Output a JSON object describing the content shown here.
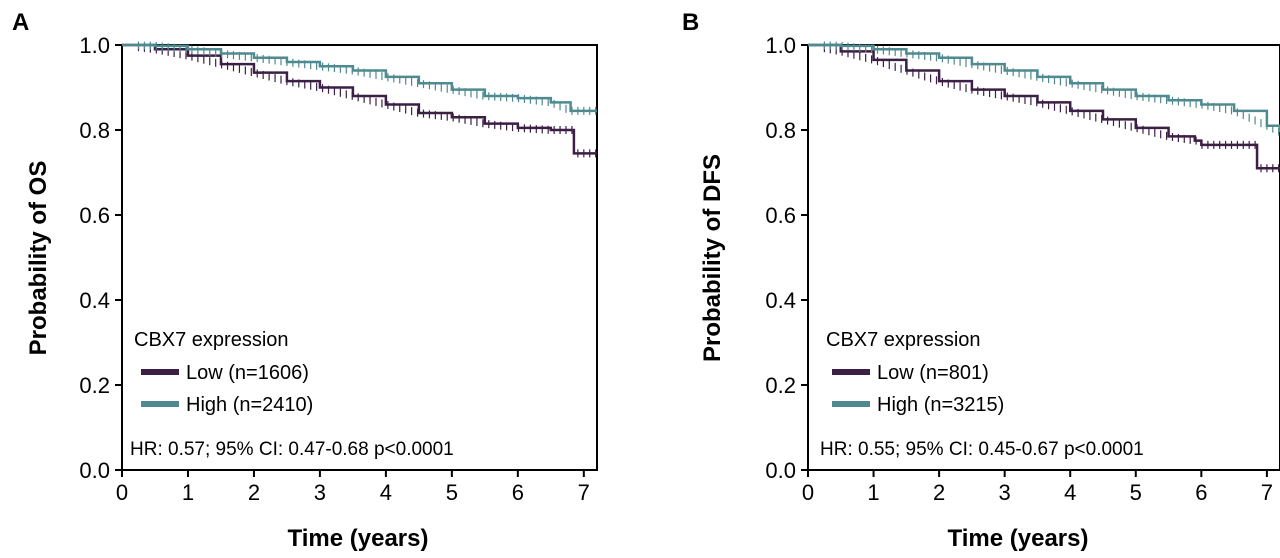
{
  "chart_data": [
    {
      "type": "line",
      "panel_label": "A",
      "xlabel": "Time (years)",
      "ylabel": "Probability of OS",
      "xlim": [
        0,
        7.2
      ],
      "ylim": [
        0,
        1.0
      ],
      "x_ticks": [
        "0",
        "1",
        "2",
        "3",
        "4",
        "5",
        "6",
        "7"
      ],
      "y_ticks": [
        "0.0",
        "0.2",
        "0.4",
        "0.6",
        "0.8",
        "1.0"
      ],
      "grid": false,
      "legend_title": "CBX7 expression",
      "legend_placement": "bottom-left",
      "series": [
        {
          "name": "Low (n=1606)",
          "color": "#3b1f44",
          "x": [
            0,
            0.5,
            1,
            1.5,
            2,
            2.5,
            3,
            3.5,
            4,
            4.5,
            5,
            5.5,
            6,
            6.5,
            6.8,
            6.85,
            7.2
          ],
          "y": [
            1.0,
            0.99,
            0.975,
            0.955,
            0.935,
            0.915,
            0.9,
            0.88,
            0.86,
            0.84,
            0.83,
            0.815,
            0.805,
            0.8,
            0.8,
            0.745,
            0.745
          ]
        },
        {
          "name": "High (n=2410)",
          "color": "#4e8a8f",
          "x": [
            0,
            0.5,
            1,
            1.5,
            2,
            2.5,
            3,
            3.5,
            4,
            4.5,
            5,
            5.5,
            6,
            6.5,
            6.8,
            7.2
          ],
          "y": [
            1.0,
            0.998,
            0.99,
            0.98,
            0.97,
            0.96,
            0.95,
            0.94,
            0.925,
            0.91,
            0.895,
            0.88,
            0.875,
            0.865,
            0.845,
            0.845
          ]
        }
      ],
      "annotation": "HR: 0.57; 95% CI: 0.47-0.68  p<0.0001"
    },
    {
      "type": "line",
      "panel_label": "B",
      "xlabel": "Time (years)",
      "ylabel": "Probability of DFS",
      "xlim": [
        0,
        7.2
      ],
      "ylim": [
        0,
        1.0
      ],
      "x_ticks": [
        "0",
        "1",
        "2",
        "3",
        "4",
        "5",
        "6",
        "7"
      ],
      "y_ticks": [
        "0.0",
        "0.2",
        "0.4",
        "0.6",
        "0.8",
        "1.0"
      ],
      "grid": false,
      "legend_title": "CBX7 expression",
      "legend_placement": "bottom-left",
      "series": [
        {
          "name": "Low (n=801)",
          "color": "#3b1f44",
          "x": [
            0,
            0.5,
            1,
            1.5,
            2,
            2.5,
            3,
            3.5,
            4,
            4.5,
            5,
            5.5,
            5.9,
            6,
            6.8,
            6.85,
            7.2
          ],
          "y": [
            1.0,
            0.985,
            0.965,
            0.94,
            0.915,
            0.895,
            0.88,
            0.865,
            0.845,
            0.825,
            0.805,
            0.785,
            0.775,
            0.765,
            0.765,
            0.71,
            0.71
          ]
        },
        {
          "name": "High (n=3215)",
          "color": "#4e8a8f",
          "x": [
            0,
            0.5,
            1,
            1.5,
            2,
            2.5,
            3,
            3.5,
            4,
            4.5,
            5,
            5.5,
            6,
            6.5,
            7,
            7.2
          ],
          "y": [
            1.0,
            0.998,
            0.99,
            0.98,
            0.97,
            0.955,
            0.94,
            0.925,
            0.91,
            0.895,
            0.88,
            0.87,
            0.86,
            0.845,
            0.81,
            0.795
          ]
        }
      ],
      "annotation": "HR: 0.55; 95% CI: 0.45-0.67  p<0.0001"
    }
  ]
}
